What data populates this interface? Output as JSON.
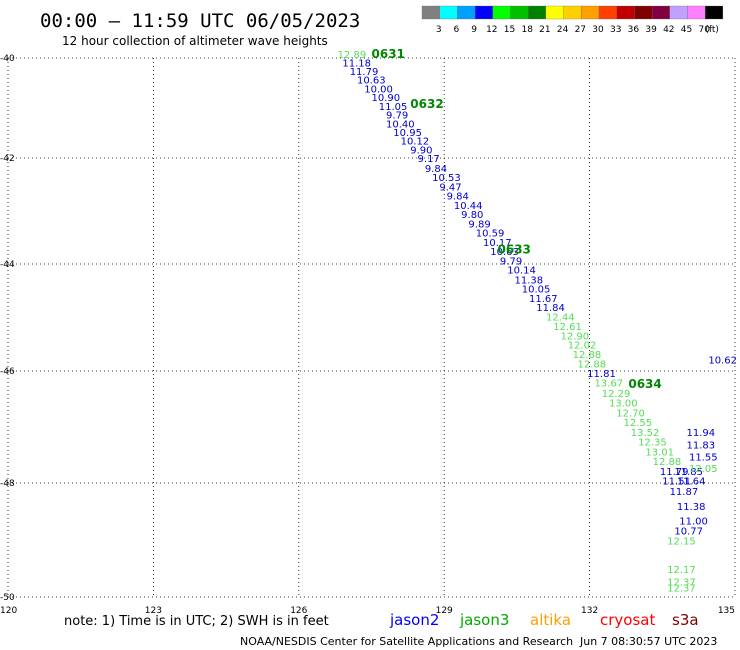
{
  "header": {
    "title": "00:00 – 11:59 UTC 06/05/2023",
    "subtitle": "12 hour collection of altimeter wave heights"
  },
  "legend": {
    "unit": "(ft)",
    "bins": [
      {
        "label": "3",
        "color": "#808080"
      },
      {
        "label": "6",
        "color": "#00ffff"
      },
      {
        "label": "9",
        "color": "#00a0ff"
      },
      {
        "label": "12",
        "color": "#0000ff"
      },
      {
        "label": "15",
        "color": "#00ff00"
      },
      {
        "label": "18",
        "color": "#00c000"
      },
      {
        "label": "21",
        "color": "#008000"
      },
      {
        "label": "24",
        "color": "#ffff00"
      },
      {
        "label": "27",
        "color": "#ffd000"
      },
      {
        "label": "30",
        "color": "#ffa000"
      },
      {
        "label": "33",
        "color": "#ff4000"
      },
      {
        "label": "36",
        "color": "#c00000"
      },
      {
        "label": "39",
        "color": "#800000"
      },
      {
        "label": "42",
        "color": "#800040"
      },
      {
        "label": "45",
        "color": "#c0a0ff"
      },
      {
        "label": "70",
        "color": "#ff80ff"
      },
      {
        "label": "",
        "color": "#000000"
      }
    ]
  },
  "axes": {
    "lat_labels": [
      "-40",
      "-42",
      "-44",
      "-46",
      "-48",
      "-50"
    ],
    "lon_labels": [
      "120",
      "123",
      "126",
      "129",
      "132",
      "135"
    ]
  },
  "time_labels": [
    {
      "text": "0631",
      "lon": 127.5,
      "lat": -40.0
    },
    {
      "text": "0632",
      "lon": 128.3,
      "lat": -41.0
    },
    {
      "text": "0633",
      "lon": 130.1,
      "lat": -43.8
    },
    {
      "text": "0634",
      "lon": 132.8,
      "lat": -46.3
    }
  ],
  "tracks": {
    "colors": {
      "blue": "#0000cc",
      "lightgreen": "#55dd55",
      "green": "#008800"
    },
    "main": [
      {
        "v": "12.89",
        "lon": 126.8,
        "lat": -40.0,
        "c": "lightgreen"
      },
      {
        "v": "11.18",
        "lon": 126.9,
        "lat": -40.17,
        "c": "blue"
      },
      {
        "v": "11.79",
        "lon": 127.05,
        "lat": -40.34,
        "c": "blue"
      },
      {
        "v": "10.63",
        "lon": 127.2,
        "lat": -40.51,
        "c": "blue"
      },
      {
        "v": "10.00",
        "lon": 127.35,
        "lat": -40.69,
        "c": "blue"
      },
      {
        "v": "10.90",
        "lon": 127.5,
        "lat": -40.86,
        "c": "blue"
      },
      {
        "v": "11.05",
        "lon": 127.65,
        "lat": -41.04,
        "c": "blue"
      },
      {
        "v": "9.79",
        "lon": 127.8,
        "lat": -41.21,
        "c": "blue"
      },
      {
        "v": "10.40",
        "lon": 127.8,
        "lat": -41.39,
        "c": "blue"
      },
      {
        "v": "10.95",
        "lon": 127.95,
        "lat": -41.56,
        "c": "blue"
      },
      {
        "v": "10.12",
        "lon": 128.1,
        "lat": -41.73,
        "c": "blue"
      },
      {
        "v": "9.90",
        "lon": 128.3,
        "lat": -41.91,
        "c": "blue"
      },
      {
        "v": "9.17",
        "lon": 128.45,
        "lat": -42.08,
        "c": "blue"
      },
      {
        "v": "9.84",
        "lon": 128.6,
        "lat": -42.26,
        "c": "blue"
      },
      {
        "v": "10.53",
        "lon": 128.75,
        "lat": -42.43,
        "c": "blue"
      },
      {
        "v": "9.47",
        "lon": 128.9,
        "lat": -42.61,
        "c": "blue"
      },
      {
        "v": "9.84",
        "lon": 129.05,
        "lat": -42.78,
        "c": "blue"
      },
      {
        "v": "10.44",
        "lon": 129.2,
        "lat": -42.96,
        "c": "blue"
      },
      {
        "v": "9.80",
        "lon": 129.35,
        "lat": -43.13,
        "c": "blue"
      },
      {
        "v": "9.89",
        "lon": 129.5,
        "lat": -43.31,
        "c": "blue"
      },
      {
        "v": "10.59",
        "lon": 129.65,
        "lat": -43.48,
        "c": "blue"
      },
      {
        "v": "10.17",
        "lon": 129.8,
        "lat": -43.66,
        "c": "blue"
      },
      {
        "v": "10.63",
        "lon": 129.95,
        "lat": -43.83,
        "c": "blue"
      },
      {
        "v": "9.79",
        "lon": 130.15,
        "lat": -44.01,
        "c": "blue"
      },
      {
        "v": "10.14",
        "lon": 130.3,
        "lat": -44.18,
        "c": "blue"
      },
      {
        "v": "11.38",
        "lon": 130.45,
        "lat": -44.36,
        "c": "blue"
      },
      {
        "v": "10.05",
        "lon": 130.6,
        "lat": -44.53,
        "c": "blue"
      },
      {
        "v": "11.67",
        "lon": 130.75,
        "lat": -44.71,
        "c": "blue"
      },
      {
        "v": "11.84",
        "lon": 130.9,
        "lat": -44.88,
        "c": "blue"
      },
      {
        "v": "12.44",
        "lon": 131.1,
        "lat": -45.06,
        "c": "lightgreen"
      },
      {
        "v": "12.61",
        "lon": 131.25,
        "lat": -45.23,
        "c": "lightgreen"
      },
      {
        "v": "12.90",
        "lon": 131.4,
        "lat": -45.41,
        "c": "lightgreen"
      },
      {
        "v": "12.02",
        "lon": 131.55,
        "lat": -45.58,
        "c": "lightgreen"
      },
      {
        "v": "12.88",
        "lon": 131.65,
        "lat": -45.76,
        "c": "lightgreen"
      },
      {
        "v": "12.88",
        "lon": 131.75,
        "lat": -45.93,
        "c": "lightgreen"
      },
      {
        "v": "11.81",
        "lon": 131.95,
        "lat": -46.11,
        "c": "blue"
      },
      {
        "v": "13.67",
        "lon": 132.1,
        "lat": -46.28,
        "c": "lightgreen"
      },
      {
        "v": "12.29",
        "lon": 132.25,
        "lat": -46.46,
        "c": "lightgreen"
      },
      {
        "v": "13.00",
        "lon": 132.4,
        "lat": -46.63,
        "c": "lightgreen"
      },
      {
        "v": "12.70",
        "lon": 132.55,
        "lat": -46.81,
        "c": "lightgreen"
      },
      {
        "v": "12.55",
        "lon": 132.7,
        "lat": -46.98,
        "c": "lightgreen"
      },
      {
        "v": "13.52",
        "lon": 132.85,
        "lat": -47.16,
        "c": "lightgreen"
      },
      {
        "v": "12.35",
        "lon": 133.0,
        "lat": -47.33,
        "c": "lightgreen"
      },
      {
        "v": "13.01",
        "lon": 133.15,
        "lat": -47.51,
        "c": "lightgreen"
      },
      {
        "v": "12.88",
        "lon": 133.3,
        "lat": -47.68,
        "c": "lightgreen"
      },
      {
        "v": "11.79",
        "lon": 133.45,
        "lat": -47.86,
        "c": "blue"
      },
      {
        "v": "11.85",
        "lon": 133.75,
        "lat": -47.86,
        "c": "blue"
      },
      {
        "v": "11.51",
        "lon": 133.5,
        "lat": -48.03,
        "c": "blue"
      },
      {
        "v": "11.64",
        "lon": 133.8,
        "lat": -48.03,
        "c": "blue"
      },
      {
        "v": "11.87",
        "lon": 133.65,
        "lat": -48.21,
        "c": "blue"
      },
      {
        "v": "11.38",
        "lon": 133.8,
        "lat": -48.47,
        "c": "blue"
      },
      {
        "v": "11.00",
        "lon": 133.85,
        "lat": -48.73,
        "c": "blue"
      },
      {
        "v": "10.77",
        "lon": 133.75,
        "lat": -48.9,
        "c": "blue"
      },
      {
        "v": "12.15",
        "lon": 133.6,
        "lat": -49.08,
        "c": "lightgreen"
      },
      {
        "v": "12.17",
        "lon": 133.6,
        "lat": -49.58,
        "c": "lightgreen"
      },
      {
        "v": "12.37",
        "lon": 133.6,
        "lat": -49.8,
        "c": "lightgreen"
      },
      {
        "v": "12.37",
        "lon": 133.6,
        "lat": -49.9,
        "c": "lightgreen"
      }
    ],
    "edge": [
      {
        "v": "11.94",
        "lon": 134.0,
        "lat": -47.16,
        "c": "blue"
      },
      {
        "v": "11.83",
        "lon": 134.0,
        "lat": -47.38,
        "c": "blue"
      },
      {
        "v": "11.55",
        "lon": 134.05,
        "lat": -47.6,
        "c": "blue"
      },
      {
        "v": "12.05",
        "lon": 134.05,
        "lat": -47.8,
        "c": "lightgreen"
      },
      {
        "v": "10.62",
        "lon": 134.45,
        "lat": -45.86,
        "c": "blue"
      }
    ]
  },
  "footer": {
    "note": "note: 1) Time is in UTC; 2) SWH is in feet",
    "satellites": [
      {
        "name": "jason2",
        "color": "#0000ff"
      },
      {
        "name": "jason3",
        "color": "#00aa00"
      },
      {
        "name": "altika",
        "color": "#ffa000"
      },
      {
        "name": "cryosat",
        "color": "#ff0000"
      },
      {
        "name": "s3a",
        "color": "#800000"
      }
    ],
    "credit": "NOAA/NESDIS Center for Satellite Applications and Research",
    "timestamp": "Jun  7 08:30:57 UTC 2023"
  }
}
